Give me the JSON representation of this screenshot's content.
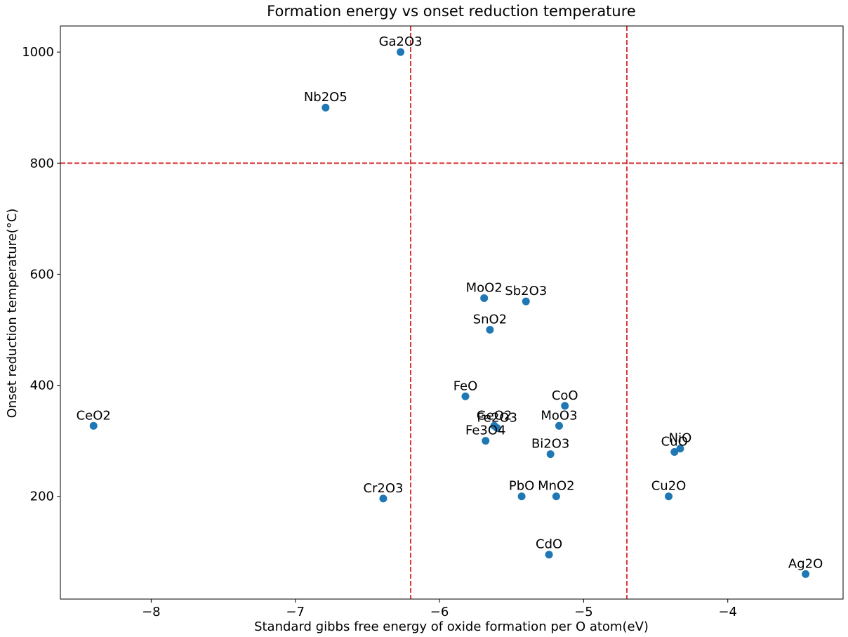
{
  "chart_data": {
    "type": "scatter",
    "title": "Formation energy vs onset reduction temperature",
    "xlabel": "Standard gibbs free energy of oxide formation per O atom(eV)",
    "ylabel": "Onset reduction temperature(°C)",
    "xlim": [
      -8.63,
      -3.2
    ],
    "ylim": [
      15,
      1047
    ],
    "xticks": [
      -8,
      -7,
      -6,
      -5,
      -4
    ],
    "xtick_labels": [
      "−8",
      "−7",
      "−6",
      "−5",
      "−4"
    ],
    "yticks": [
      200,
      400,
      600,
      800,
      1000
    ],
    "ytick_labels": [
      "200",
      "400",
      "600",
      "800",
      "1000"
    ],
    "marker_color": "#1f77b4",
    "grid": false,
    "reference_lines": {
      "color": "#d62728",
      "style": "dashed",
      "vertical_x": [
        -6.2,
        -4.7
      ],
      "horizontal_y": [
        800
      ]
    },
    "points": [
      {
        "label": "Ga2O3",
        "x": -6.27,
        "y": 1000
      },
      {
        "label": "Nb2O5",
        "x": -6.79,
        "y": 900
      },
      {
        "label": "MoO2",
        "x": -5.69,
        "y": 557
      },
      {
        "label": "Sb2O3",
        "x": -5.4,
        "y": 551
      },
      {
        "label": "SnO2",
        "x": -5.65,
        "y": 500
      },
      {
        "label": "FeO",
        "x": -5.82,
        "y": 380
      },
      {
        "label": "CoO",
        "x": -5.13,
        "y": 363
      },
      {
        "label": "CeO2",
        "x": -8.4,
        "y": 327
      },
      {
        "label": "GeO2",
        "x": -5.62,
        "y": 327
      },
      {
        "label": "Fe2O3",
        "x": -5.6,
        "y": 323
      },
      {
        "label": "MoO3",
        "x": -5.17,
        "y": 327
      },
      {
        "label": "Fe3O4",
        "x": -5.68,
        "y": 300
      },
      {
        "label": "NiO",
        "x": -4.33,
        "y": 286
      },
      {
        "label": "CuO",
        "x": -4.37,
        "y": 280
      },
      {
        "label": "Bi2O3",
        "x": -5.23,
        "y": 276
      },
      {
        "label": "Cr2O3",
        "x": -6.39,
        "y": 196
      },
      {
        "label": "PbO",
        "x": -5.43,
        "y": 200
      },
      {
        "label": "MnO2",
        "x": -5.19,
        "y": 200
      },
      {
        "label": "Cu2O",
        "x": -4.41,
        "y": 200
      },
      {
        "label": "CdO",
        "x": -5.24,
        "y": 95
      },
      {
        "label": "Ag2O",
        "x": -3.46,
        "y": 60
      }
    ]
  }
}
